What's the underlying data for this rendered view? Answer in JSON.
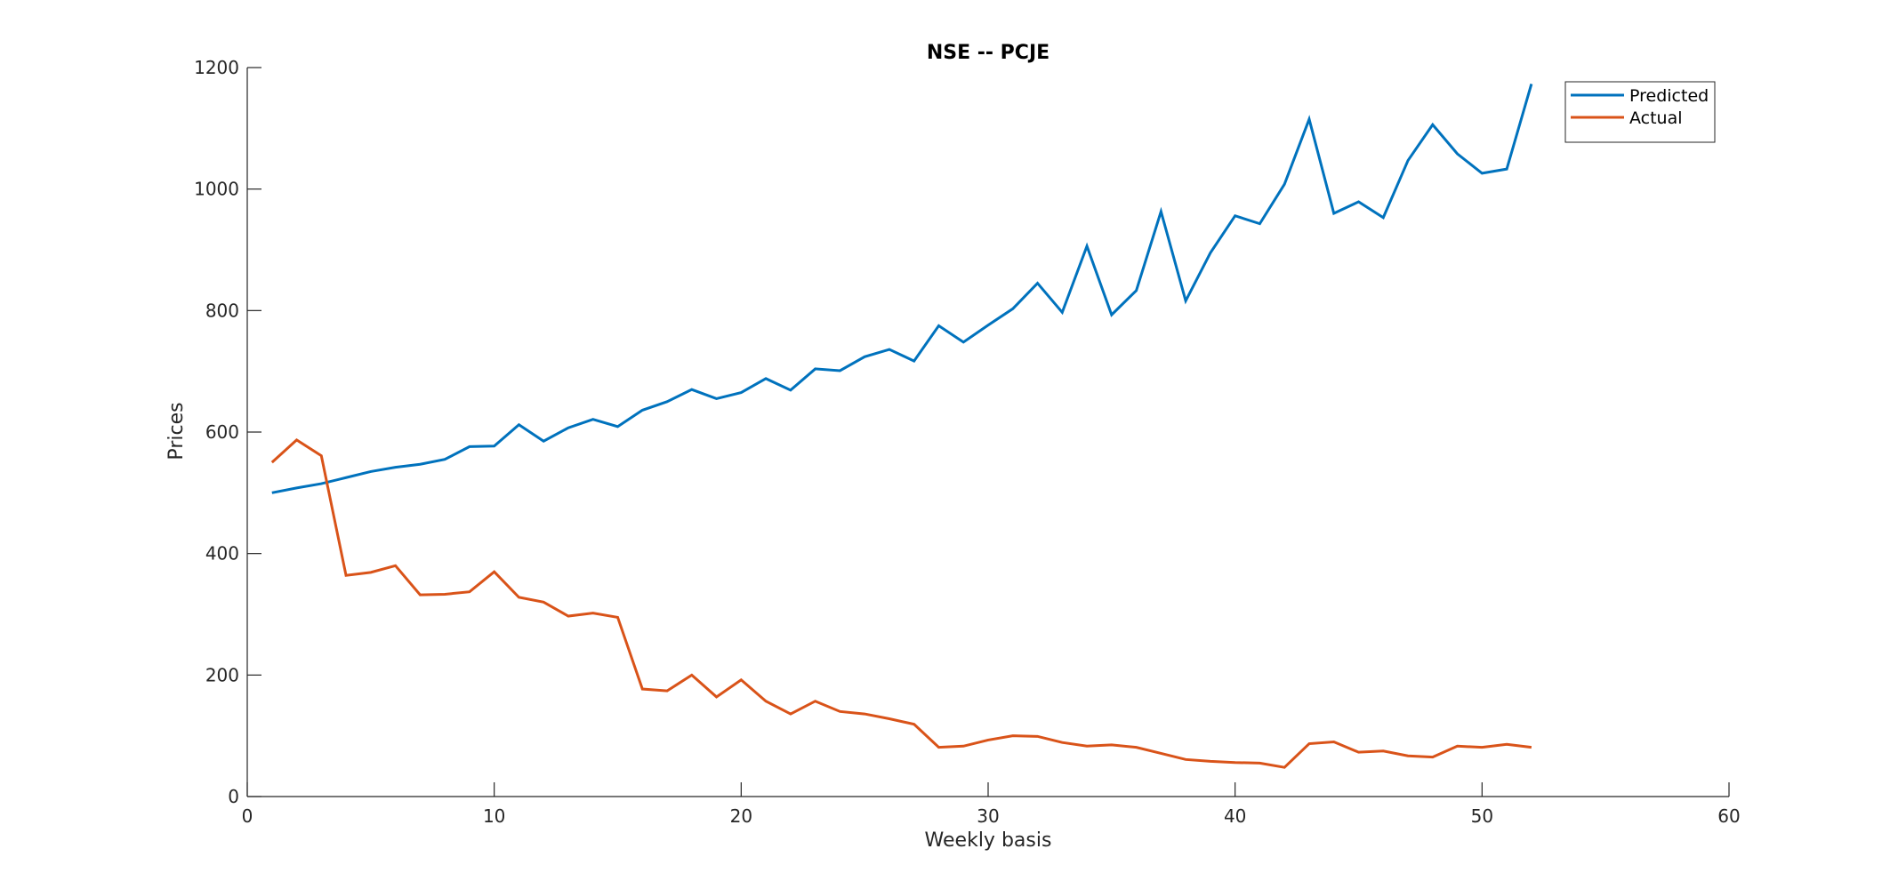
{
  "chart_data": {
    "type": "line",
    "title": "NSE -- PCJE",
    "xlabel": "Weekly basis",
    "ylabel": "Prices",
    "xlim": [
      0,
      60
    ],
    "ylim": [
      0,
      1200
    ],
    "xticks": [
      0,
      10,
      20,
      30,
      40,
      50,
      60
    ],
    "yticks": [
      0,
      200,
      400,
      600,
      800,
      1000,
      1200
    ],
    "grid": false,
    "legend_position": "top-right",
    "x": [
      1,
      2,
      3,
      4,
      5,
      6,
      7,
      8,
      9,
      10,
      11,
      12,
      13,
      14,
      15,
      16,
      17,
      18,
      19,
      20,
      21,
      22,
      23,
      24,
      25,
      26,
      27,
      28,
      29,
      30,
      31,
      32,
      33,
      34,
      35,
      36,
      37,
      38,
      39,
      40,
      41,
      42,
      43,
      44,
      45,
      46,
      47,
      48,
      49,
      50,
      51,
      52
    ],
    "series": [
      {
        "name": "Predicted",
        "color": "#0072BD",
        "values": [
          500,
          508,
          515,
          525,
          535,
          542,
          547,
          555,
          576,
          577,
          612,
          585,
          607,
          621,
          609,
          636,
          650,
          670,
          655,
          665,
          688,
          669,
          704,
          701,
          724,
          736,
          717,
          775,
          748,
          776,
          803,
          845,
          797,
          906,
          793,
          833,
          963,
          816,
          895,
          956,
          943,
          1008,
          1115,
          960,
          979,
          953,
          1047,
          1106,
          1058,
          1026,
          1033,
          1173
        ]
      },
      {
        "name": "Actual",
        "color": "#D95319",
        "values": [
          550,
          587,
          561,
          364,
          369,
          380,
          332,
          333,
          337,
          370,
          328,
          320,
          297,
          302,
          295,
          177,
          174,
          200,
          164,
          192,
          157,
          136,
          157,
          140,
          136,
          128,
          119,
          81,
          83,
          93,
          100,
          99,
          89,
          83,
          85,
          81,
          71,
          61,
          58,
          56,
          55,
          48,
          87,
          90,
          73,
          75,
          67,
          65,
          83,
          81,
          86,
          81
        ]
      }
    ]
  }
}
